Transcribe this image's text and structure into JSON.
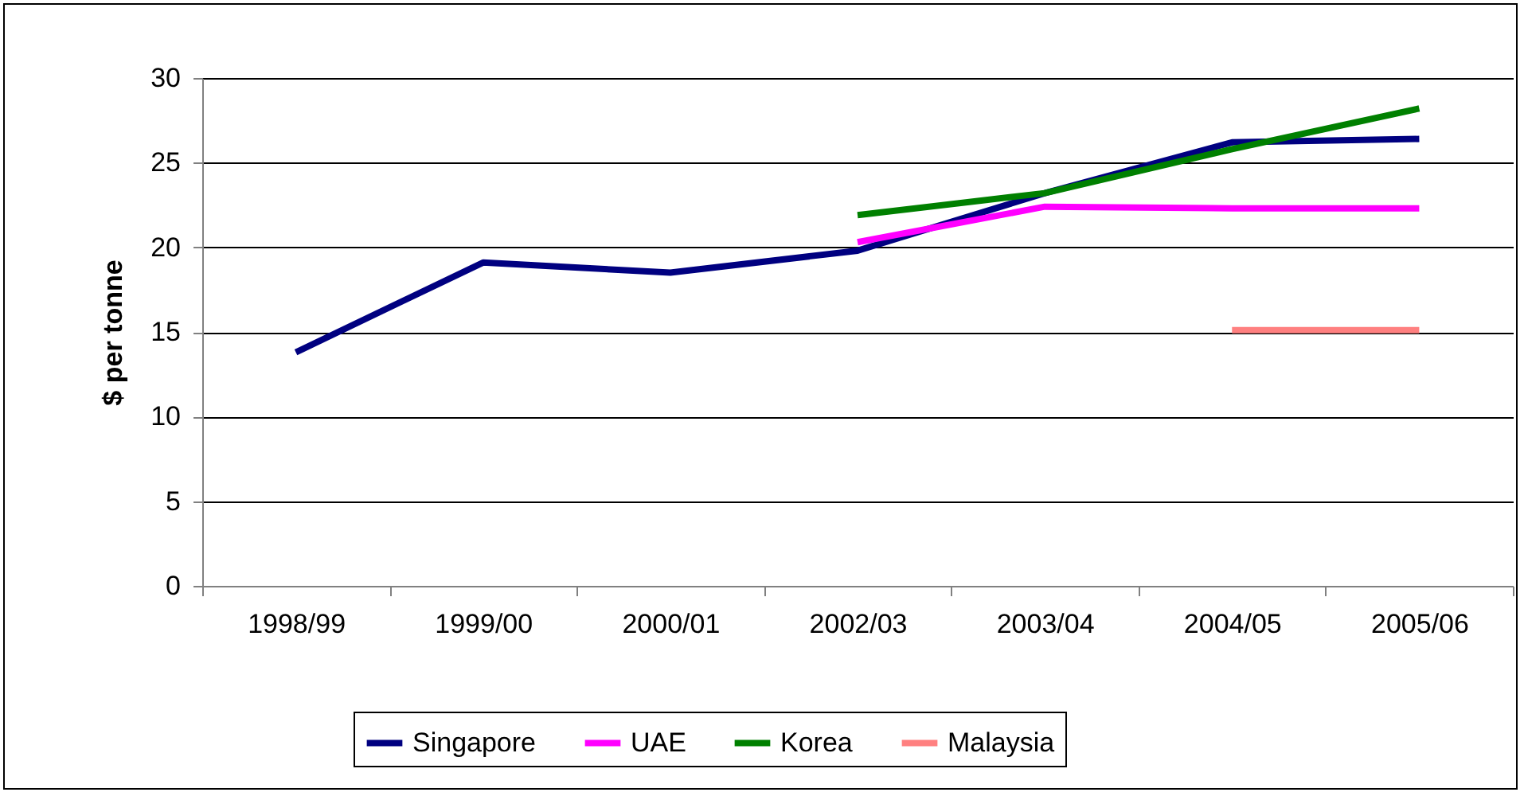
{
  "chart_data": {
    "type": "line",
    "ylabel": "$ per tonne",
    "categories": [
      "1998/99",
      "1999/00",
      "2000/01",
      "2002/03",
      "2003/04",
      "2004/05",
      "2005/06"
    ],
    "series": [
      {
        "name": "Singapore",
        "color": "#000080",
        "values": [
          13.8,
          19.1,
          18.5,
          19.8,
          23.2,
          26.2,
          26.4
        ]
      },
      {
        "name": "UAE",
        "color": "#ff00ff",
        "values": [
          null,
          null,
          null,
          20.3,
          22.4,
          22.3,
          22.3
        ]
      },
      {
        "name": "Korea",
        "color": "#008000",
        "values": [
          null,
          null,
          null,
          21.9,
          23.2,
          25.8,
          28.2
        ]
      },
      {
        "name": "Malaysia",
        "color": "#ff8080",
        "values": [
          null,
          null,
          null,
          null,
          null,
          15.1,
          15.1
        ]
      }
    ],
    "ylim": [
      0,
      30
    ],
    "yticks": [
      0,
      5,
      10,
      15,
      20,
      25,
      30
    ],
    "grid": "y",
    "legend": "bottom",
    "marker": "none",
    "line_style": "solid"
  }
}
